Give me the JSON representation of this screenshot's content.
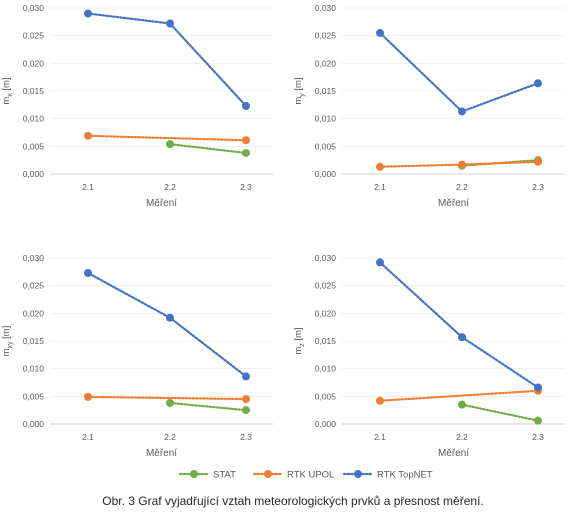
{
  "caption": "Obr. 3 Graf vyjadřující vztah meteorologických prvků a přesnost měření.",
  "colors": {
    "STAT": "#70ad47",
    "RTK UPOL": "#ed7d31",
    "RTK TopNET": "#4472c4"
  },
  "legend": {
    "items": [
      "STAT",
      "RTK UPOL",
      "RTK TopNET"
    ]
  },
  "chart_data": [
    {
      "type": "line",
      "categories": [
        "2.1",
        "2.2",
        "2.3"
      ],
      "xlabel": "Měření",
      "ylabel": {
        "base": "m",
        "sub": "x",
        "unit": " [m]"
      },
      "ylim": [
        0,
        0.03
      ],
      "yticks": [
        "0,000",
        "0,005",
        "0,010",
        "0,015",
        "0,020",
        "0,025",
        "0,030"
      ],
      "series": [
        {
          "name": "STAT",
          "values": [
            null,
            0.0054,
            0.0038
          ]
        },
        {
          "name": "RTK UPOL",
          "values": [
            0.0069,
            null,
            0.0061
          ]
        },
        {
          "name": "RTK TopNET",
          "values": [
            0.029,
            0.0272,
            0.0123
          ]
        }
      ]
    },
    {
      "type": "line",
      "categories": [
        "2.1",
        "2.2",
        "2.3"
      ],
      "xlabel": "Měření",
      "ylabel": {
        "base": "m",
        "sub": "y",
        "unit": " [m]"
      },
      "ylim": [
        0,
        0.03
      ],
      "yticks": [
        "0,000",
        "0,005",
        "0,010",
        "0,015",
        "0,020",
        "0,025",
        "0,030"
      ],
      "series": [
        {
          "name": "STAT",
          "values": [
            null,
            0.0015,
            0.0025
          ]
        },
        {
          "name": "RTK UPOL",
          "values": [
            0.0013,
            0.0017,
            0.0022
          ]
        },
        {
          "name": "RTK TopNET",
          "values": [
            0.0255,
            0.0113,
            0.0164
          ]
        }
      ]
    },
    {
      "type": "line",
      "categories": [
        "2.1",
        "2.2",
        "2.3"
      ],
      "xlabel": "Měření",
      "ylabel": {
        "base": "m",
        "sub": "xy",
        "unit": " [m]"
      },
      "ylim": [
        0,
        0.03
      ],
      "yticks": [
        "0,000",
        "0,005",
        "0,010",
        "0,015",
        "0,020",
        "0,025",
        "0,030"
      ],
      "series": [
        {
          "name": "STAT",
          "values": [
            null,
            0.0038,
            0.0025
          ]
        },
        {
          "name": "RTK UPOL",
          "values": [
            0.0049,
            null,
            0.0045
          ]
        },
        {
          "name": "RTK TopNET",
          "values": [
            0.0273,
            0.0192,
            0.0086
          ]
        }
      ]
    },
    {
      "type": "line",
      "categories": [
        "2.1",
        "2.2",
        "2.3"
      ],
      "xlabel": "Měření",
      "ylabel": {
        "base": "m",
        "sub": "z",
        "unit": " [m]"
      },
      "ylim": [
        0,
        0.03
      ],
      "yticks": [
        "0,000",
        "0,005",
        "0,010",
        "0,015",
        "0,020",
        "0,025",
        "0,030"
      ],
      "series": [
        {
          "name": "STAT",
          "values": [
            null,
            0.0035,
            0.0006
          ]
        },
        {
          "name": "RTK UPOL",
          "values": [
            0.0042,
            null,
            0.006
          ]
        },
        {
          "name": "RTK TopNET",
          "values": [
            0.0292,
            0.0157,
            0.0066
          ]
        }
      ]
    }
  ]
}
